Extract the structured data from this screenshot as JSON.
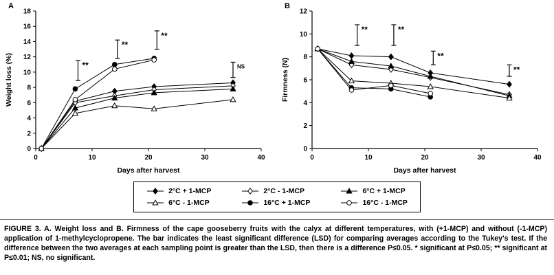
{
  "figure": {
    "caption_label": "FIGURE 3.",
    "caption_text": "A. Weight loss and B. Firmness of the cape gooseberry fruits with the calyx at different temperatures, with (+1-MCP) and without (-1-MCP) application of 1-methylcyclopropene. The bar indicates the least significant difference (LSD) for comparing averages according to the Tukey's test. If the difference between the two averages at each sampling point is greater than the LSD, then there is a difference P≤0.05. * significant at P≤0.05; ** significant at P≤0.01; NS, no significant."
  },
  "legend": {
    "items": [
      {
        "label": "2°C + 1-MCP",
        "marker": "diamond",
        "fill": "filled"
      },
      {
        "label": "2°C - 1-MCP",
        "marker": "diamond",
        "fill": "open"
      },
      {
        "label": "6°C + 1-MCP",
        "marker": "triangle",
        "fill": "filled"
      },
      {
        "label": "6°C - 1-MCP",
        "marker": "triangle",
        "fill": "open"
      },
      {
        "label": "16°C + 1-MCP",
        "marker": "circle",
        "fill": "filled"
      },
      {
        "label": "16°C - 1-MCP",
        "marker": "circle",
        "fill": "open"
      }
    ]
  },
  "chart_data": [
    {
      "type": "line",
      "panel_label": "A",
      "xlabel": "Days after harvest",
      "ylabel": "Weight loss (%)",
      "xlim": [
        0,
        40
      ],
      "ylim": [
        0,
        18
      ],
      "xticks": [
        0,
        10,
        20,
        30,
        40
      ],
      "yticks": [
        0,
        2,
        4,
        6,
        8,
        10,
        12,
        14,
        16,
        18
      ],
      "x": [
        1,
        7,
        14,
        21,
        35
      ],
      "series": [
        {
          "name": "2°C + 1-MCP",
          "marker": "diamond",
          "fill": "filled",
          "values": [
            0,
            6.2,
            7.5,
            8.1,
            8.6
          ]
        },
        {
          "name": "2°C - 1-MCP",
          "marker": "diamond",
          "fill": "open",
          "values": [
            0,
            6.0,
            6.9,
            7.7,
            8.2
          ]
        },
        {
          "name": "6°C + 1-MCP",
          "marker": "triangle",
          "fill": "filled",
          "values": [
            0,
            5.3,
            6.6,
            7.3,
            7.8
          ]
        },
        {
          "name": "6°C - 1-MCP",
          "marker": "triangle",
          "fill": "open",
          "values": [
            0,
            4.6,
            5.6,
            5.2,
            6.4
          ]
        },
        {
          "name": "16°C + 1-MCP",
          "marker": "circle",
          "fill": "filled",
          "values": [
            0,
            7.8,
            11.0,
            11.8,
            null
          ]
        },
        {
          "name": "16°C - 1-MCP",
          "marker": "circle",
          "fill": "open",
          "values": [
            0,
            6.4,
            10.4,
            11.6,
            null
          ]
        }
      ],
      "lsd_bars": [
        {
          "x": 7.5,
          "y_center": 10.2,
          "half": 1.3,
          "label": "**"
        },
        {
          "x": 14.5,
          "y_center": 13.0,
          "half": 1.2,
          "label": "**"
        },
        {
          "x": 21.5,
          "y_center": 14.2,
          "half": 1.2,
          "label": "**"
        },
        {
          "x": 35,
          "y_center": 10.3,
          "half": 1.0,
          "label": "NS"
        }
      ]
    },
    {
      "type": "line",
      "panel_label": "B",
      "xlabel": "Days after harvest",
      "ylabel": "Firmness (N)",
      "xlim": [
        0,
        40
      ],
      "ylim": [
        0,
        12
      ],
      "xticks": [
        0,
        10,
        20,
        30,
        40
      ],
      "yticks": [
        0,
        2,
        4,
        6,
        8,
        10,
        12
      ],
      "x": [
        1,
        7,
        14,
        21,
        35
      ],
      "series": [
        {
          "name": "2°C + 1-MCP",
          "marker": "diamond",
          "fill": "filled",
          "values": [
            8.7,
            8.1,
            8.0,
            6.6,
            5.6
          ]
        },
        {
          "name": "2°C - 1-MCP",
          "marker": "diamond",
          "fill": "open",
          "values": [
            8.7,
            7.3,
            6.9,
            6.2,
            4.7
          ]
        },
        {
          "name": "6°C + 1-MCP",
          "marker": "triangle",
          "fill": "filled",
          "values": [
            8.7,
            7.6,
            7.2,
            6.3,
            4.6
          ]
        },
        {
          "name": "6°C - 1-MCP",
          "marker": "triangle",
          "fill": "open",
          "values": [
            8.7,
            5.9,
            5.7,
            5.4,
            4.4
          ]
        },
        {
          "name": "16°C + 1-MCP",
          "marker": "circle",
          "fill": "filled",
          "values": [
            8.7,
            5.3,
            5.2,
            4.5,
            null
          ]
        },
        {
          "name": "16°C - 1-MCP",
          "marker": "circle",
          "fill": "open",
          "values": [
            8.7,
            5.1,
            5.5,
            4.8,
            null
          ]
        }
      ],
      "lsd_bars": [
        {
          "x": 8,
          "y_center": 9.9,
          "half": 0.9,
          "label": "**"
        },
        {
          "x": 14.5,
          "y_center": 9.9,
          "half": 0.9,
          "label": "**"
        },
        {
          "x": 21.5,
          "y_center": 7.9,
          "half": 0.6,
          "label": "**"
        },
        {
          "x": 35,
          "y_center": 6.8,
          "half": 0.5,
          "label": "**"
        }
      ]
    }
  ]
}
